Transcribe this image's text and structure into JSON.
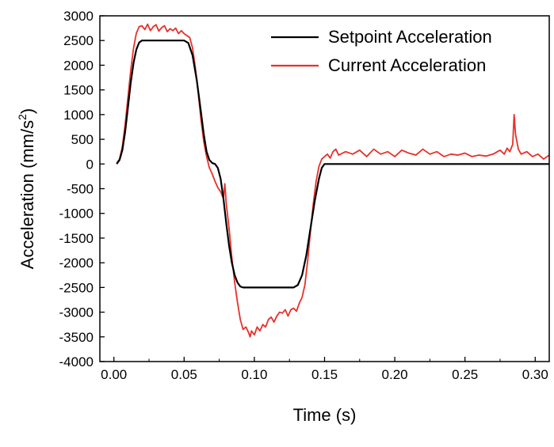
{
  "chart_data": {
    "type": "line",
    "xlabel": "Time (s)",
    "ylabel_main": "Acceleration (mm/s",
    "ylabel_sup": "2",
    "ylabel_tail": ")",
    "xlim": [
      -0.01,
      0.31
    ],
    "ylim": [
      -4000,
      3000
    ],
    "xticks": [
      0.0,
      0.05,
      0.1,
      0.15,
      0.2,
      0.25,
      0.3
    ],
    "xtick_labels": [
      "0.00",
      "0.05",
      "0.10",
      "0.15",
      "0.20",
      "0.25",
      "0.30"
    ],
    "yticks": [
      3000,
      2500,
      2000,
      1500,
      1000,
      500,
      0,
      -500,
      -1000,
      -1500,
      -2000,
      -2500,
      -3000,
      -3500,
      -4000
    ],
    "ytick_labels": [
      "3000",
      "2500",
      "2000",
      "1500",
      "1000",
      "500",
      "0",
      "-500",
      "-1000",
      "-1500",
      "-2000",
      "-2500",
      "-3000",
      "-3500",
      "-4000"
    ],
    "legend_position": "top-right",
    "grid": false,
    "series": [
      {
        "name": "Setpoint Acceleration",
        "color": "#000000",
        "x": [
          0.002,
          0.004,
          0.006,
          0.008,
          0.01,
          0.012,
          0.014,
          0.016,
          0.018,
          0.02,
          0.03,
          0.04,
          0.05,
          0.053,
          0.056,
          0.059,
          0.062,
          0.064,
          0.066,
          0.068,
          0.07,
          0.072,
          0.074,
          0.076,
          0.078,
          0.08,
          0.082,
          0.084,
          0.086,
          0.088,
          0.09,
          0.092,
          0.094,
          0.096,
          0.1,
          0.11,
          0.12,
          0.128,
          0.131,
          0.134,
          0.137,
          0.14,
          0.143,
          0.146,
          0.148,
          0.15,
          0.2,
          0.25,
          0.31
        ],
        "y": [
          0,
          80,
          280,
          650,
          1150,
          1650,
          2050,
          2320,
          2460,
          2500,
          2500,
          2500,
          2500,
          2450,
          2200,
          1700,
          1050,
          600,
          250,
          80,
          20,
          0,
          -80,
          -300,
          -700,
          -1200,
          -1650,
          -2000,
          -2250,
          -2400,
          -2480,
          -2500,
          -2500,
          -2500,
          -2500,
          -2500,
          -2500,
          -2500,
          -2450,
          -2250,
          -1850,
          -1300,
          -750,
          -300,
          -80,
          0,
          0,
          0,
          0
        ]
      },
      {
        "name": "Current Acceleration",
        "color": "#e8302a",
        "x": [
          0.002,
          0.004,
          0.006,
          0.008,
          0.01,
          0.012,
          0.014,
          0.016,
          0.018,
          0.02,
          0.022,
          0.024,
          0.026,
          0.028,
          0.03,
          0.032,
          0.034,
          0.036,
          0.038,
          0.04,
          0.042,
          0.044,
          0.046,
          0.048,
          0.05,
          0.052,
          0.054,
          0.056,
          0.058,
          0.06,
          0.062,
          0.064,
          0.066,
          0.068,
          0.07,
          0.072,
          0.074,
          0.076,
          0.078,
          0.079,
          0.08,
          0.082,
          0.084,
          0.086,
          0.088,
          0.09,
          0.092,
          0.094,
          0.096,
          0.097,
          0.098,
          0.1,
          0.102,
          0.104,
          0.106,
          0.108,
          0.11,
          0.112,
          0.114,
          0.116,
          0.118,
          0.12,
          0.122,
          0.124,
          0.126,
          0.128,
          0.13,
          0.132,
          0.134,
          0.136,
          0.138,
          0.14,
          0.142,
          0.144,
          0.146,
          0.148,
          0.15,
          0.152,
          0.154,
          0.156,
          0.158,
          0.16,
          0.165,
          0.17,
          0.175,
          0.18,
          0.185,
          0.19,
          0.195,
          0.2,
          0.205,
          0.21,
          0.215,
          0.22,
          0.225,
          0.23,
          0.235,
          0.24,
          0.245,
          0.25,
          0.255,
          0.26,
          0.265,
          0.27,
          0.275,
          0.278,
          0.28,
          0.282,
          0.284,
          0.285,
          0.286,
          0.288,
          0.29,
          0.294,
          0.298,
          0.302,
          0.306,
          0.31
        ],
        "y": [
          20,
          100,
          350,
          800,
          1350,
          1900,
          2350,
          2650,
          2780,
          2800,
          2720,
          2830,
          2700,
          2780,
          2820,
          2690,
          2760,
          2800,
          2680,
          2740,
          2700,
          2750,
          2640,
          2700,
          2640,
          2600,
          2560,
          2350,
          1950,
          1450,
          900,
          450,
          150,
          -80,
          -200,
          -350,
          -480,
          -560,
          -700,
          -400,
          -800,
          -1300,
          -1900,
          -2400,
          -2800,
          -3150,
          -3350,
          -3300,
          -3420,
          -3500,
          -3380,
          -3460,
          -3300,
          -3380,
          -3250,
          -3300,
          -3150,
          -3100,
          -3200,
          -3080,
          -3000,
          -3020,
          -2950,
          -3080,
          -2950,
          -2920,
          -2980,
          -2820,
          -2700,
          -2450,
          -1950,
          -1350,
          -800,
          -350,
          -50,
          100,
          150,
          200,
          120,
          250,
          300,
          180,
          250,
          200,
          280,
          150,
          300,
          200,
          250,
          150,
          280,
          220,
          180,
          300,
          200,
          250,
          150,
          200,
          180,
          220,
          150,
          180,
          160,
          200,
          280,
          200,
          320,
          250,
          400,
          1000,
          600,
          300,
          200,
          250,
          150,
          200,
          100,
          180
        ]
      }
    ]
  }
}
